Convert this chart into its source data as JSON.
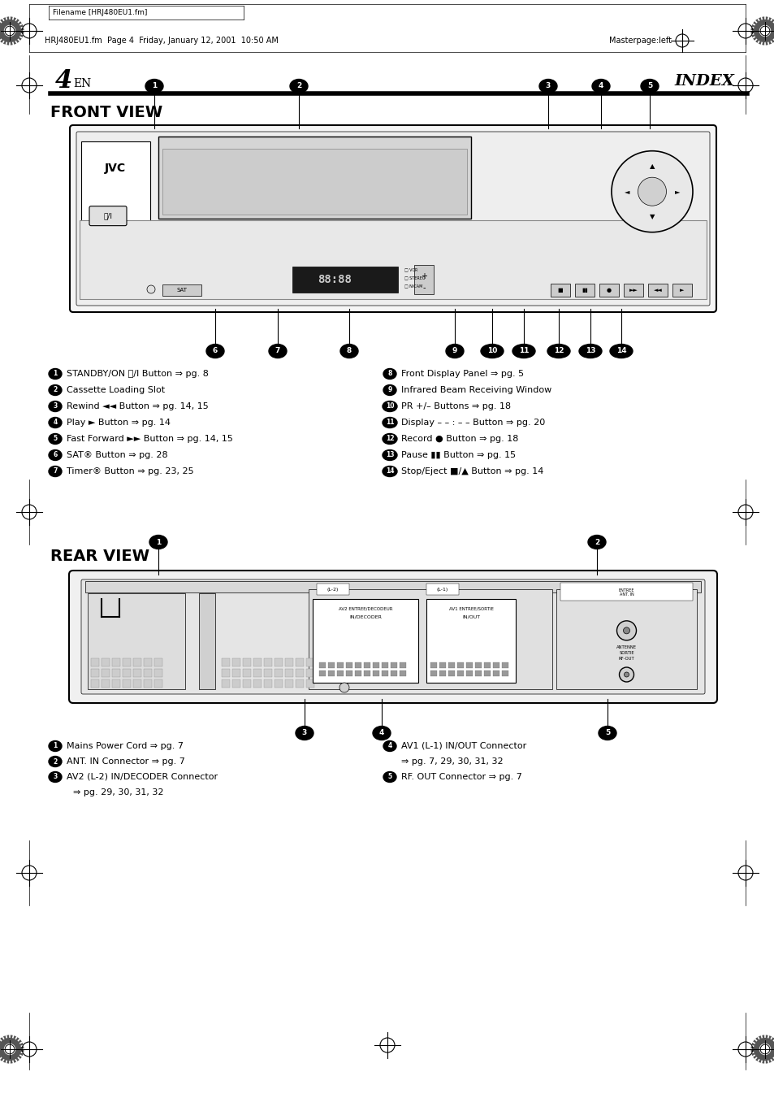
{
  "bg_color": "#ffffff",
  "header_filename": "Filename [HRJ480EU1.fm]",
  "header_footer": "HRJ480EU1.fm  Page 4  Friday, January 12, 2001  10:50 AM",
  "header_masterpage": "Masterpage:left",
  "page_number": "4",
  "page_lang": "EN",
  "page_title": "INDEX",
  "section1_title": "FRONT VIEW",
  "section2_title": "REAR VIEW",
  "front_labels_left": [
    "STANDBY/ON ⏻/I Button ⇒ pg. 8",
    "Cassette Loading Slot",
    "Rewind ◄◄ Button ⇒ pg. 14, 15",
    "Play ► Button ⇒ pg. 14",
    "Fast Forward ►► Button ⇒ pg. 14, 15",
    "SAT® Button ⇒ pg. 28",
    "Timer® Button ⇒ pg. 23, 25"
  ],
  "front_labels_right": [
    "Front Display Panel ⇒ pg. 5",
    "Infrared Beam Receiving Window",
    "PR +/– Buttons ⇒ pg. 18",
    "Display – – : – – Button ⇒ pg. 20",
    "Record ● Button ⇒ pg. 18",
    "Pause ▮▮ Button ⇒ pg. 15",
    "Stop/Eject ■/▲ Button ⇒ pg. 14"
  ],
  "rear_labels_left": [
    "Mains Power Cord ⇒ pg. 7",
    "ANT. IN Connector ⇒ pg. 7",
    "AV2 (L-2) IN/DECODER Connector",
    "⇒ pg. 29, 30, 31, 32"
  ],
  "rear_labels_right": [
    "AV1 (L-1) IN/OUT Connector",
    "⇒ pg. 7, 29, 30, 31, 32",
    "RF. OUT Connector ⇒ pg. 7"
  ]
}
